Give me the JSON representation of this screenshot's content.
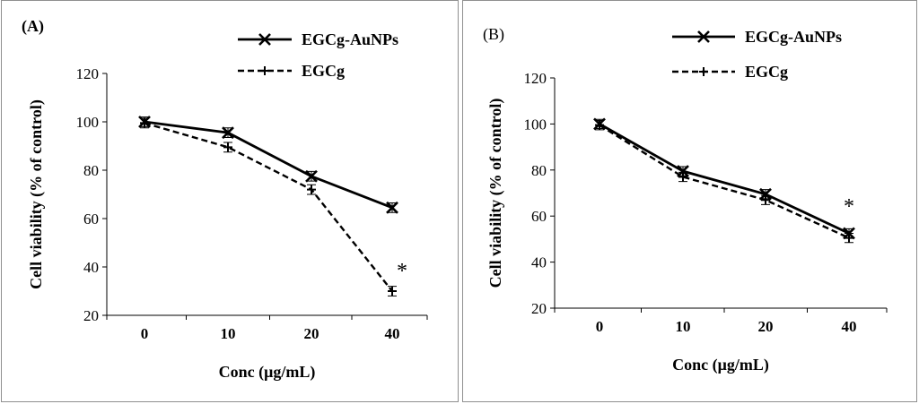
{
  "chart_data": [
    {
      "type": "line",
      "panel_label": "(A)",
      "xlabel": "Conc (μg/mL)",
      "ylabel": "Cell viability (% of control)",
      "categories": [
        "0",
        "10",
        "20",
        "40"
      ],
      "ylim": [
        20,
        120
      ],
      "yticks": [
        "20",
        "40",
        "60",
        "80",
        "100",
        "120"
      ],
      "grid": false,
      "legend_position": "top-right",
      "series": [
        {
          "name": "EGCg-AuNPs",
          "marker": "x",
          "line_style": "solid",
          "values": [
            100,
            95.5,
            77.5,
            64.5
          ],
          "errors": [
            2,
            2,
            2,
            2
          ]
        },
        {
          "name": "EGCg",
          "marker": "+",
          "line_style": "dashed",
          "values": [
            99.5,
            89.5,
            72,
            30
          ],
          "errors": [
            2,
            2,
            2,
            2
          ]
        }
      ],
      "annotations": [
        {
          "text": "*",
          "category": "40",
          "y": 40
        }
      ]
    },
    {
      "type": "line",
      "panel_label": "(B)",
      "xlabel": "Conc (μg/mL)",
      "ylabel": "Cell viability (% of control)",
      "categories": [
        "0",
        "10",
        "20",
        "40"
      ],
      "ylim": [
        20,
        120
      ],
      "yticks": [
        "20",
        "40",
        "60",
        "80",
        "100",
        "120"
      ],
      "grid": false,
      "legend_position": "top-right",
      "series": [
        {
          "name": "EGCg-AuNPs",
          "marker": "x",
          "line_style": "solid",
          "values": [
            100,
            79.5,
            69.5,
            52.5
          ],
          "errors": [
            2,
            2,
            2,
            2
          ]
        },
        {
          "name": "EGCg",
          "marker": "+",
          "line_style": "dashed",
          "values": [
            99.5,
            77,
            67,
            50.5
          ],
          "errors": [
            2,
            2,
            2,
            2
          ]
        }
      ],
      "annotations": [
        {
          "text": "*",
          "category": "40",
          "y": 66
        }
      ]
    }
  ]
}
